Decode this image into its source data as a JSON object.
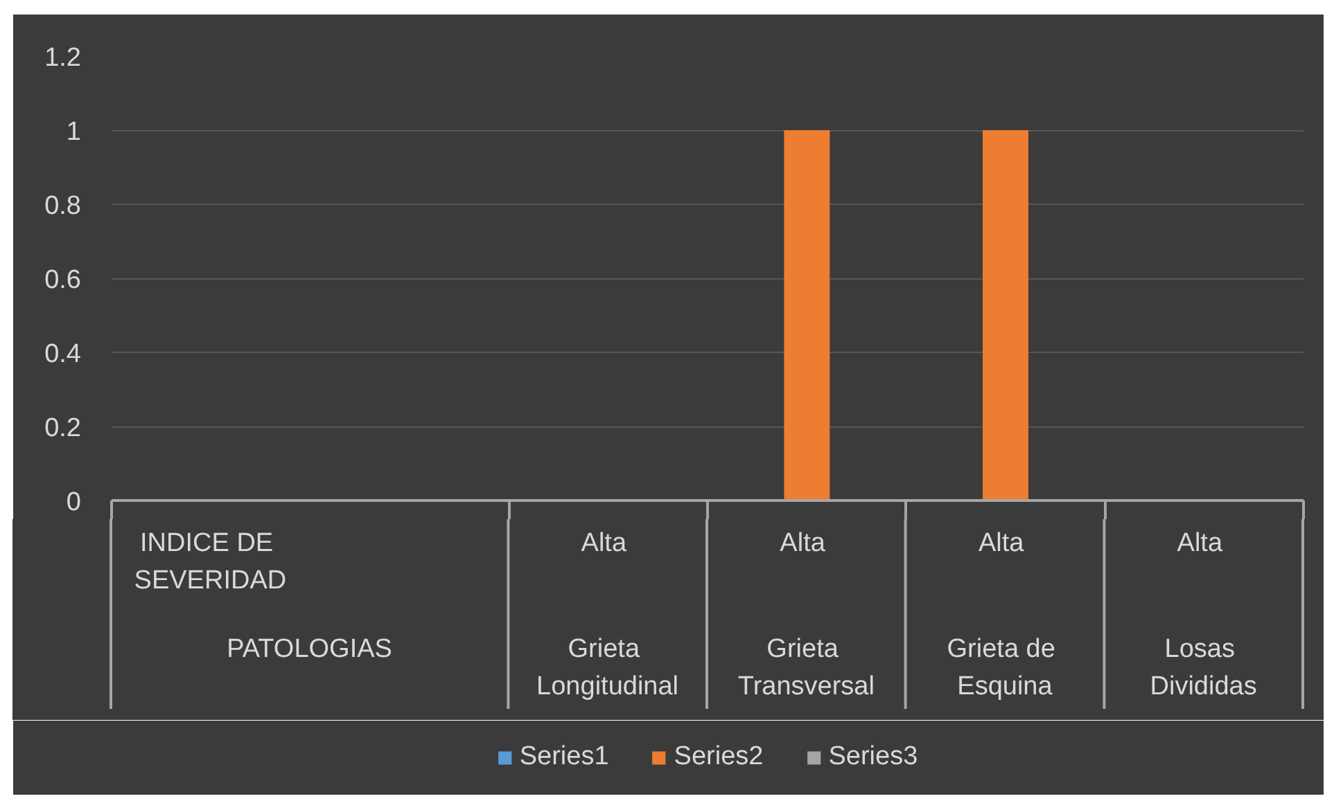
{
  "chart_data": {
    "type": "bar",
    "categories": [
      "INDICE DE SEVERIDAD\nPATOLOGIAS",
      null,
      "Alta\nGrieta Longitudinal",
      "Alta\nGrieta Transversal",
      "Alta\nGrieta de Esquina",
      "Alta\nLosas Divididas"
    ],
    "series": [
      {
        "name": "Series1",
        "color": "#5b9bd5",
        "values": [
          null,
          null,
          null,
          null,
          null,
          null
        ]
      },
      {
        "name": "Series2",
        "color": "#ed7d31",
        "values": [
          null,
          null,
          null,
          1,
          1,
          null
        ]
      },
      {
        "name": "Series3",
        "color": "#a5a5a5",
        "values": [
          null,
          null,
          null,
          null,
          null,
          null
        ]
      }
    ],
    "ylim": [
      0,
      1.2
    ],
    "yticks": [
      0,
      0.2,
      0.4,
      0.6,
      0.8,
      1,
      1.2
    ],
    "grid": "y",
    "legend": "bottom"
  }
}
